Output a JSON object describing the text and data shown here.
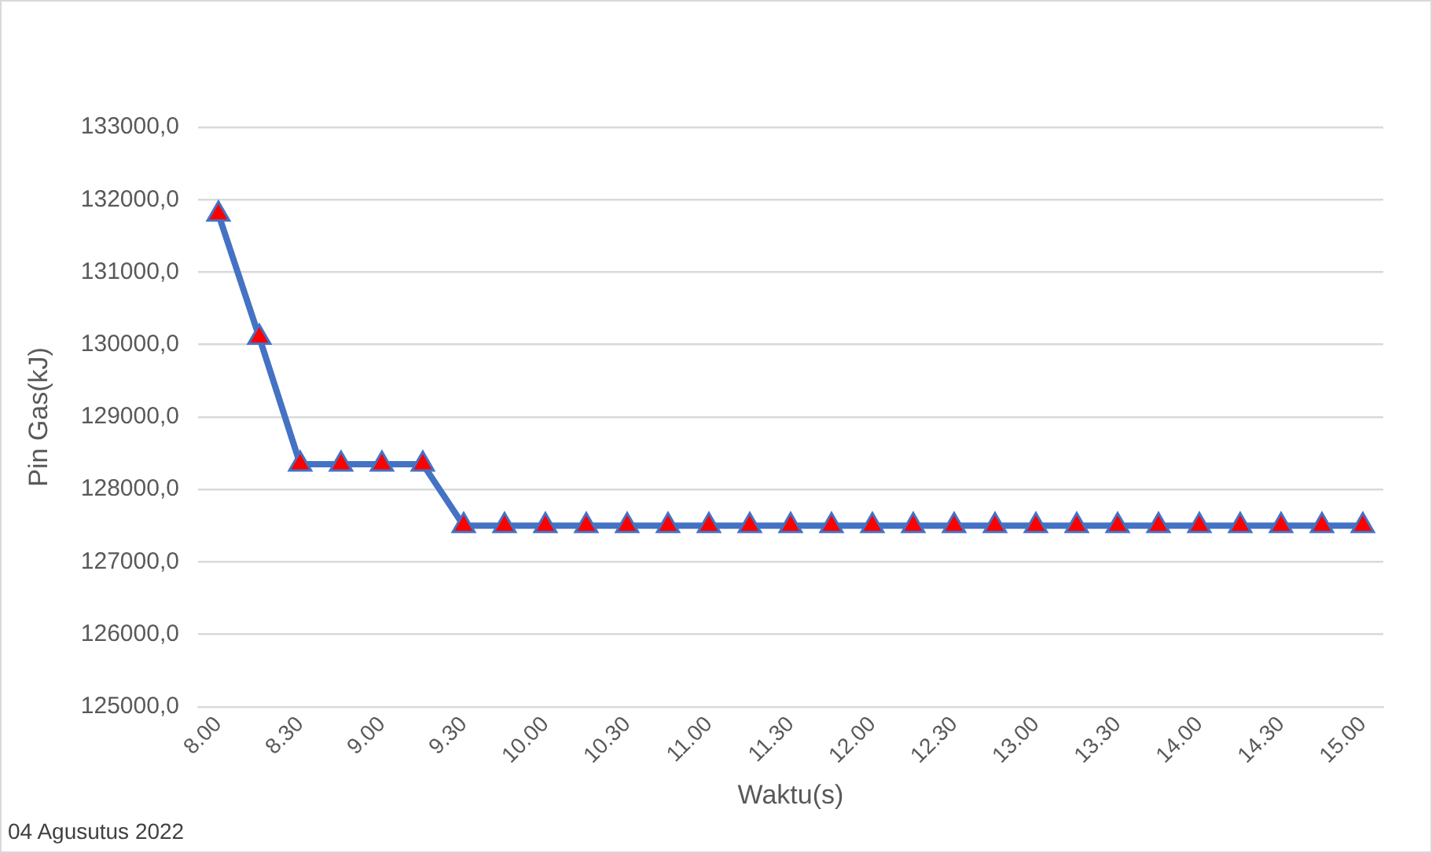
{
  "chart_data": {
    "type": "line",
    "xlabel": "Waktu(s)",
    "ylabel": "Pin Gas(kJ)",
    "annotations": [
      "04 Agusutus 2022"
    ],
    "categories": [
      "8.00",
      null,
      "8.30",
      null,
      "9.00",
      null,
      "9.30",
      null,
      "10.00",
      null,
      "10.30",
      null,
      "11.00",
      null,
      "11.30",
      null,
      "12.00",
      null,
      "12.30",
      null,
      "13.00",
      null,
      "13.30",
      null,
      "14.00",
      null,
      "14.30",
      null,
      "15.00"
    ],
    "series": [
      {
        "color": "#4472c4",
        "colors": [
          "#ff0000",
          "#ff0000",
          "#ff0000",
          "#ff0000",
          "#ff0000",
          "#ff0000",
          "#ff0000",
          "#ff0000",
          "#ff0000",
          "#ff0000",
          "#ff0000",
          "#ff0000",
          "#ff0000",
          "#ff0000",
          "#ff0000",
          "#ff0000",
          "#ff0000",
          "#ff0000",
          "#ff0000",
          "#ff0000",
          "#ff0000",
          "#ff0000",
          "#ff0000",
          "#ff0000",
          "#ff0000",
          "#ff0000",
          "#ff0000",
          "#ff0000",
          "#ff0000"
        ],
        "values": [
          131800,
          130100,
          128350,
          128350,
          128350,
          128350,
          127500,
          127500,
          127500,
          127500,
          127500,
          127500,
          127500,
          127500,
          127500,
          127500,
          127500,
          127500,
          127500,
          127500,
          127500,
          127500,
          127500,
          127500,
          127500,
          127500,
          127500,
          127500,
          127500
        ]
      }
    ],
    "ylim": [
      125000,
      133000
    ],
    "yticks": [
      {
        "value": 125000,
        "label": "125000,0"
      },
      {
        "value": 126000,
        "label": "126000,0"
      },
      {
        "value": 127000,
        "label": "127000,0"
      },
      {
        "value": 128000,
        "label": "128000,0"
      },
      {
        "value": 129000,
        "label": "129000,0"
      },
      {
        "value": 130000,
        "label": "130000,0"
      },
      {
        "value": 131000,
        "label": "131000,0"
      },
      {
        "value": 132000,
        "label": "132000,0"
      },
      {
        "value": 133000,
        "label": "133000,0"
      }
    ],
    "grid": "y",
    "legend": false,
    "marker": "triangle",
    "line_style": "solid"
  }
}
